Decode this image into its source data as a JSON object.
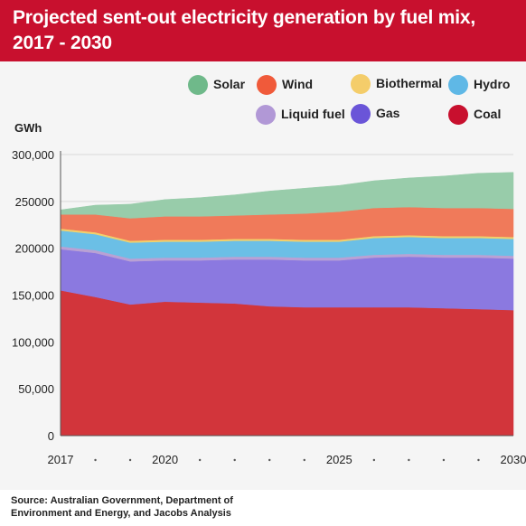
{
  "title_line1": "Projected sent-out electricity generation by fuel mix,",
  "title_line2": "2017 - 2030",
  "source_line1": "Source: Australian Government, Department of",
  "source_line2": "Environment and Energy, and Jacobs Analysis",
  "chart_data": {
    "type": "area",
    "stacked": true,
    "ylabel": "GWh",
    "xlabel": "",
    "x": [
      2017,
      2018,
      2019,
      2020,
      2021,
      2022,
      2023,
      2024,
      2025,
      2026,
      2027,
      2028,
      2029,
      2030
    ],
    "xticks": [
      2017,
      2020,
      2025,
      2030
    ],
    "xtick_labels": [
      "2017",
      "2020",
      "2025",
      "2030"
    ],
    "ylim": [
      0,
      300000
    ],
    "yticks": [
      0,
      50000,
      100000,
      150000,
      200000,
      250000,
      300000
    ],
    "ytick_labels": [
      "0",
      "50,000",
      "100,000",
      "150,000",
      "200000",
      "250000",
      "300,000"
    ],
    "legend_position": "top-right",
    "series": [
      {
        "name": "Coal",
        "color": "#d2353b",
        "values": [
          155000,
          148000,
          140000,
          143000,
          142000,
          141000,
          138000,
          137000,
          137000,
          137000,
          137000,
          136000,
          135000,
          134000
        ]
      },
      {
        "name": "Gas",
        "color": "#8b79e0",
        "values": [
          44000,
          47000,
          46000,
          44000,
          45000,
          47000,
          50000,
          50000,
          50000,
          53000,
          54000,
          54000,
          55000,
          55000
        ]
      },
      {
        "name": "Liquid fuel",
        "color": "#b9a1d4",
        "values": [
          3000,
          3000,
          3000,
          3000,
          3000,
          3000,
          3000,
          3000,
          3000,
          3000,
          3000,
          3000,
          3000,
          3000
        ]
      },
      {
        "name": "Hydro",
        "color": "#6bbfe6",
        "values": [
          17000,
          17000,
          17000,
          17000,
          17000,
          17000,
          17000,
          17000,
          17000,
          18000,
          18000,
          18000,
          18000,
          18000
        ]
      },
      {
        "name": "Biothermal",
        "color": "#f2d06b",
        "values": [
          2000,
          2000,
          2000,
          2000,
          2000,
          2000,
          2000,
          2000,
          2000,
          2000,
          2000,
          2000,
          2000,
          2000
        ]
      },
      {
        "name": "Wind",
        "color": "#f07a5a",
        "values": [
          15000,
          19000,
          24000,
          25000,
          25000,
          25000,
          26000,
          28000,
          30000,
          30000,
          30000,
          30000,
          30000,
          30000
        ]
      },
      {
        "name": "Solar",
        "color": "#98ccaa",
        "values": [
          5000,
          10000,
          15000,
          18000,
          20000,
          22000,
          25000,
          27000,
          28000,
          29000,
          31000,
          34000,
          37000,
          39000
        ]
      }
    ],
    "legend": [
      {
        "name": "Solar",
        "color": "#6fb98a"
      },
      {
        "name": "Wind",
        "color": "#f05a3a"
      },
      {
        "name": "Biothermal",
        "color": "#f4cd6a"
      },
      {
        "name": "Hydro",
        "color": "#5fb8e6"
      },
      {
        "name": "Liquid fuel",
        "color": "#b198d6"
      },
      {
        "name": "Gas",
        "color": "#6a55d8"
      },
      {
        "name": "Coal",
        "color": "#c8102e"
      }
    ]
  }
}
